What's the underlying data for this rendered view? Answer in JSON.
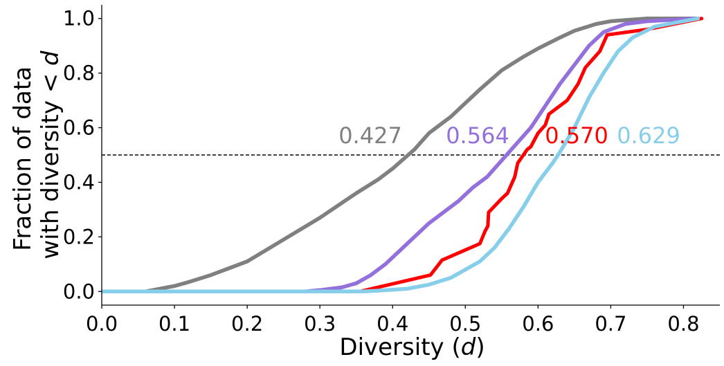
{
  "chart_data": {
    "type": "line",
    "title": "",
    "xlabel": "Diversity (d)",
    "ylabel_line1": "Fraction of data",
    "ylabel_line2": "with diversity < d",
    "xlim": [
      0.0,
      0.85
    ],
    "ylim": [
      -0.05,
      1.05
    ],
    "xticks": [
      "0.0",
      "0.1",
      "0.2",
      "0.3",
      "0.4",
      "0.5",
      "0.6",
      "0.7",
      "0.8"
    ],
    "yticks": [
      "0.0",
      "0.2",
      "0.4",
      "0.6",
      "0.8",
      "1.0"
    ],
    "reference_line": {
      "y": 0.5,
      "style": "dashed",
      "color": "#000000"
    },
    "grid": false,
    "legend": "none",
    "annotations": [
      {
        "text": "0.427",
        "x": 0.427,
        "color": "#808080"
      },
      {
        "text": "0.564",
        "x": 0.564,
        "color": "#9370DB"
      },
      {
        "text": "0.570",
        "x": 0.57,
        "color": "#FF0000"
      },
      {
        "text": "0.629",
        "x": 0.629,
        "color": "#87CEEB"
      }
    ],
    "series": [
      {
        "color": "#808080",
        "x": [
          0.0,
          0.06,
          0.08,
          0.1,
          0.12,
          0.15,
          0.18,
          0.2,
          0.25,
          0.3,
          0.35,
          0.38,
          0.4,
          0.43,
          0.45,
          0.48,
          0.5,
          0.52,
          0.55,
          0.58,
          0.6,
          0.63,
          0.65,
          0.68,
          0.7,
          0.75,
          0.82
        ],
        "y": [
          0.0,
          0.0,
          0.01,
          0.02,
          0.035,
          0.06,
          0.09,
          0.11,
          0.19,
          0.27,
          0.36,
          0.41,
          0.45,
          0.52,
          0.58,
          0.64,
          0.69,
          0.74,
          0.81,
          0.86,
          0.89,
          0.93,
          0.955,
          0.98,
          0.99,
          1.0,
          1.0
        ]
      },
      {
        "color": "#9370DB",
        "x": [
          0.0,
          0.28,
          0.3,
          0.33,
          0.35,
          0.37,
          0.39,
          0.41,
          0.43,
          0.45,
          0.47,
          0.49,
          0.51,
          0.53,
          0.55,
          0.57,
          0.59,
          0.61,
          0.63,
          0.65,
          0.67,
          0.69,
          0.72,
          0.75,
          0.82
        ],
        "y": [
          0.0,
          0.0,
          0.005,
          0.015,
          0.03,
          0.06,
          0.1,
          0.15,
          0.2,
          0.25,
          0.29,
          0.33,
          0.38,
          0.42,
          0.48,
          0.54,
          0.6,
          0.68,
          0.76,
          0.83,
          0.9,
          0.95,
          0.98,
          0.99,
          1.0
        ]
      },
      {
        "color": "#FF0000",
        "x": [
          0.0,
          0.355,
          0.452,
          0.468,
          0.52,
          0.527,
          0.531,
          0.532,
          0.55,
          0.558,
          0.568,
          0.572,
          0.585,
          0.59,
          0.6,
          0.61,
          0.615,
          0.64,
          0.655,
          0.665,
          0.685,
          0.695,
          0.75,
          0.825
        ],
        "y": [
          0.0,
          0.0,
          0.06,
          0.115,
          0.175,
          0.22,
          0.24,
          0.29,
          0.34,
          0.36,
          0.42,
          0.47,
          0.52,
          0.53,
          0.58,
          0.61,
          0.65,
          0.7,
          0.76,
          0.82,
          0.88,
          0.94,
          0.96,
          1.0
        ]
      },
      {
        "color": "#87CEEB",
        "x": [
          0.0,
          0.36,
          0.38,
          0.42,
          0.45,
          0.48,
          0.5,
          0.52,
          0.54,
          0.56,
          0.58,
          0.6,
          0.62,
          0.63,
          0.65,
          0.67,
          0.69,
          0.71,
          0.73,
          0.76,
          0.82
        ],
        "y": [
          0.0,
          0.0,
          0.003,
          0.01,
          0.025,
          0.05,
          0.08,
          0.11,
          0.16,
          0.23,
          0.31,
          0.4,
          0.47,
          0.51,
          0.6,
          0.71,
          0.8,
          0.88,
          0.93,
          0.97,
          1.0
        ]
      }
    ]
  }
}
